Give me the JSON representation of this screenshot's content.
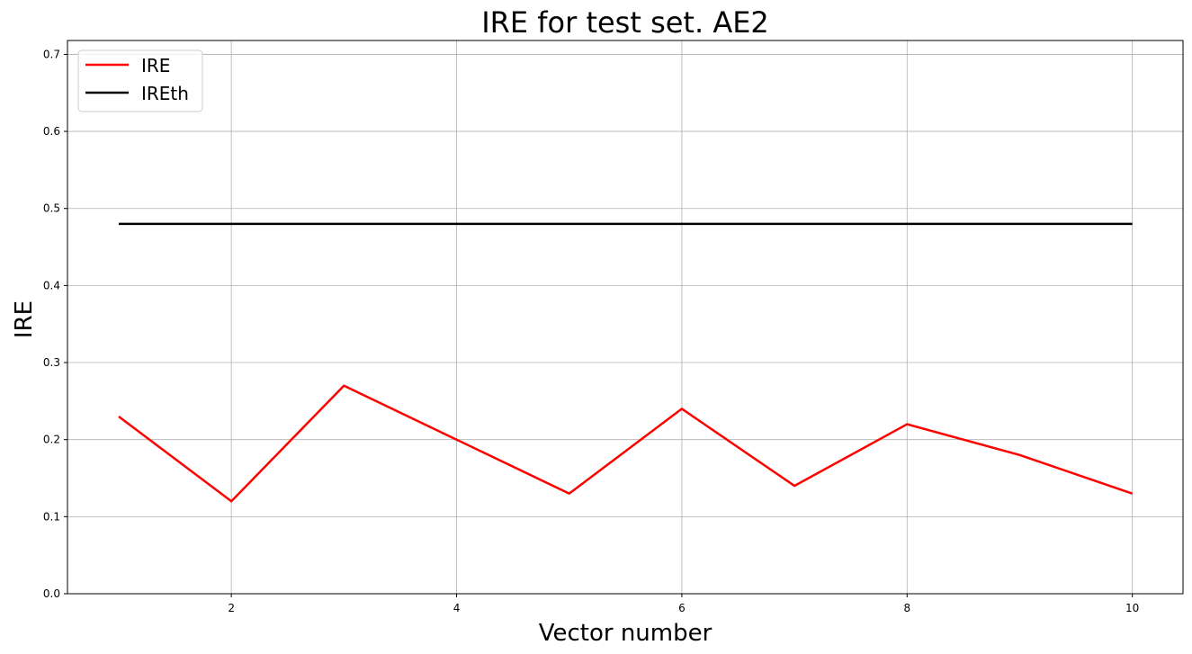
{
  "chart_data": {
    "type": "line",
    "title": "IRE for test set. AE2",
    "xlabel": "Vector number",
    "ylabel": "IRE",
    "xlim": [
      0.545,
      10.45
    ],
    "ylim": [
      0,
      0.718
    ],
    "xticks": [
      2,
      4,
      6,
      8,
      10
    ],
    "yticks": [
      0.0,
      0.1,
      0.2,
      0.3,
      0.4,
      0.5,
      0.6,
      0.7
    ],
    "xtick_labels": [
      "2",
      "4",
      "6",
      "8",
      "10"
    ],
    "ytick_labels": [
      "0.0",
      "0.1",
      "0.2",
      "0.3",
      "0.4",
      "0.5",
      "0.6",
      "0.7"
    ],
    "grid": true,
    "legend_position": "top-left",
    "x": [
      1,
      2,
      3,
      4,
      5,
      6,
      7,
      8,
      9,
      10
    ],
    "series": [
      {
        "name": "IRE",
        "color": "#ff0000",
        "values": [
          0.23,
          0.12,
          0.27,
          0.2,
          0.13,
          0.24,
          0.14,
          0.22,
          0.18,
          0.13
        ]
      },
      {
        "name": "IREth",
        "color": "#000000",
        "values": [
          0.48,
          0.48,
          0.48,
          0.48,
          0.48,
          0.48,
          0.48,
          0.48,
          0.48,
          0.48
        ]
      }
    ]
  }
}
